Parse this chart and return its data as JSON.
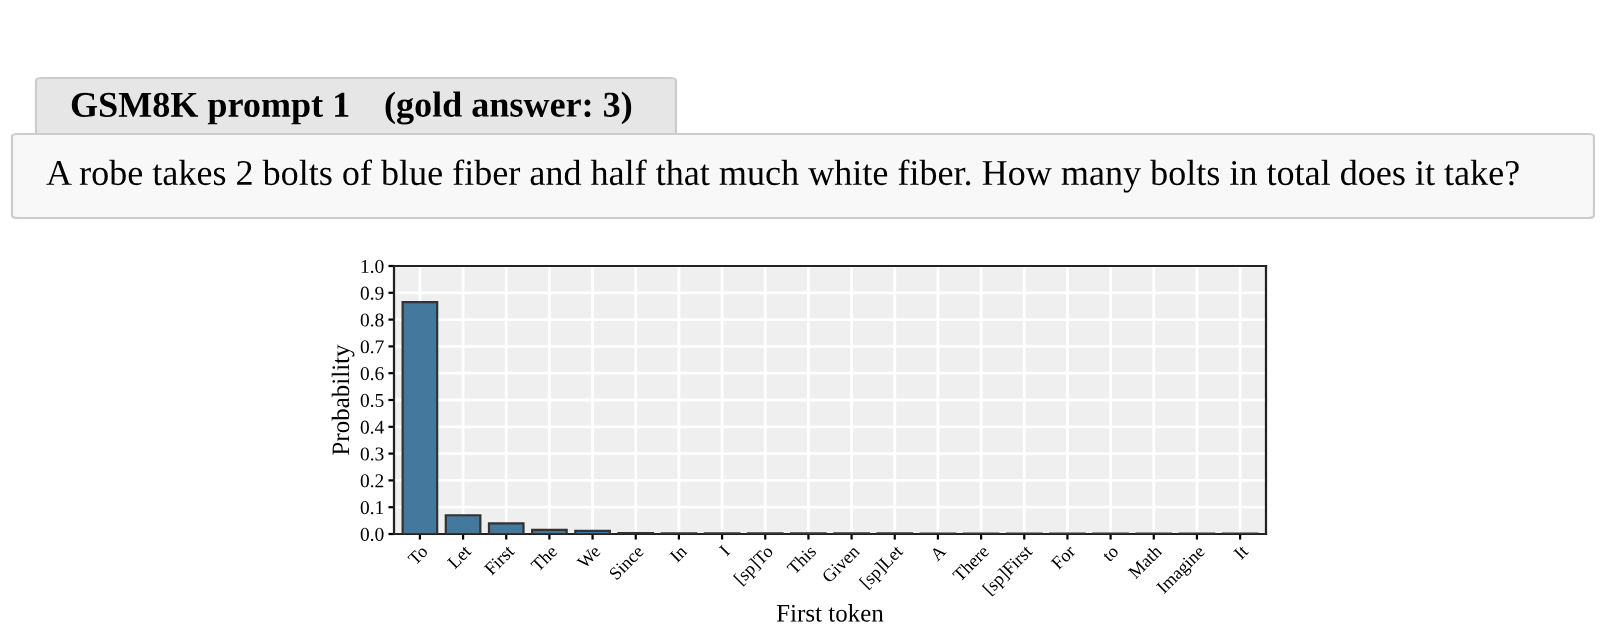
{
  "chart_data": {
    "type": "bar",
    "title": "GSM8K prompt 1",
    "subtitle": "(gold answer: 3)",
    "annotations": [
      "A robe takes 2 bolts of blue fiber and half that much white fiber. How many bolts in total does it take?"
    ],
    "xlabel": "First token",
    "ylabel": "Probability",
    "categories": [
      "To",
      "Let",
      "First",
      "The",
      "We",
      "Since",
      "In",
      "I",
      "[sp]To",
      "This",
      "Given",
      "[sp]Let",
      "A",
      "There",
      "[sp]First",
      "For",
      "to",
      "Math",
      "Imagine",
      "It"
    ],
    "values": [
      0.865,
      0.07,
      0.04,
      0.015,
      0.012,
      0.003,
      0.002,
      0.002,
      0.002,
      0.002,
      0.002,
      0.002,
      0.001,
      0.001,
      0.001,
      0.001,
      0.001,
      0.001,
      0.001,
      0.001
    ],
    "color": "#44789c",
    "ylim": [
      0,
      1.0
    ],
    "yticks": [
      {
        "value": 0,
        "label": "0.0"
      },
      0.1,
      0.2,
      0.3,
      0.4,
      0.5,
      0.6,
      0.7,
      0.8,
      0.9,
      {
        "value": 1,
        "label": "1.0"
      }
    ],
    "grid": true
  }
}
